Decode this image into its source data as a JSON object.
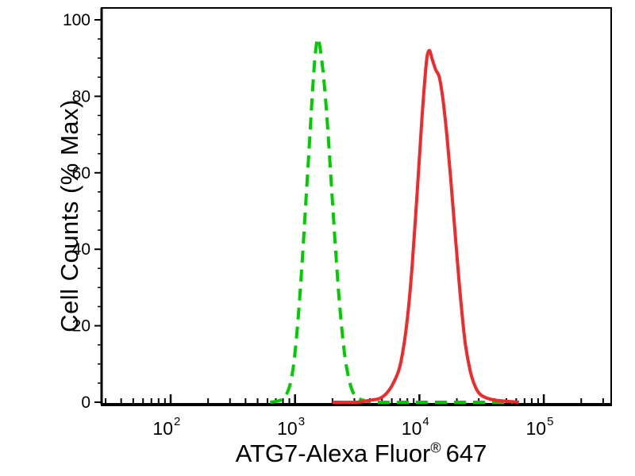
{
  "figure": {
    "background": "#ffffff",
    "axis_color": "#000000",
    "text_color": "#000000"
  },
  "chart_data": {
    "type": "line",
    "subtype": "flow-cytometry-histogram",
    "title": "",
    "xlabel": "ATG7-Alexa Fluor® 647",
    "xlabel_parts": {
      "main": "ATG7-Alexa Fluor",
      "sup": "®",
      "end": "647"
    },
    "ylabel": "Cell Counts (% Max)",
    "x_scale": "log10",
    "x_tick_exponents": [
      2,
      3,
      4,
      5
    ],
    "x_log_limits": [
      1.445,
      5.54
    ],
    "ylim": [
      0,
      100
    ],
    "y_ticks": [
      0,
      20,
      40,
      60,
      80,
      100
    ],
    "y_minor_step": 5,
    "grid": false,
    "legend": "none",
    "axis_color": "#000000",
    "series": [
      {
        "id": "green-dashed-curve",
        "name": "green dashed peak",
        "color": "#00cc00",
        "line_style": "dashed",
        "line_width": 4,
        "dash_pattern": "15 9",
        "peak": {
          "x_approx": 1500,
          "y": 95
        },
        "points_logx_y": [
          [
            2.8,
            0
          ],
          [
            2.88,
            0.5
          ],
          [
            2.93,
            2
          ],
          [
            2.97,
            6
          ],
          [
            3.0,
            13
          ],
          [
            3.03,
            24
          ],
          [
            3.06,
            38
          ],
          [
            3.09,
            54
          ],
          [
            3.12,
            70
          ],
          [
            3.14,
            81
          ],
          [
            3.16,
            90
          ],
          [
            3.18,
            95
          ],
          [
            3.2,
            93
          ],
          [
            3.23,
            85
          ],
          [
            3.26,
            73
          ],
          [
            3.29,
            58
          ],
          [
            3.32,
            43
          ],
          [
            3.35,
            29
          ],
          [
            3.38,
            18
          ],
          [
            3.41,
            10
          ],
          [
            3.45,
            4
          ],
          [
            3.49,
            1.5
          ],
          [
            3.55,
            0.5
          ],
          [
            3.65,
            0
          ],
          [
            3.95,
            0
          ],
          [
            4.3,
            0
          ],
          [
            4.6,
            0
          ],
          [
            4.75,
            0
          ]
        ]
      },
      {
        "id": "red-solid-curve",
        "name": "red solid peak",
        "color": "#ee2a2a",
        "line_style": "solid",
        "line_width": 4,
        "dash_pattern": "",
        "peak": {
          "x_approx": 12000,
          "y": 92
        },
        "points_logx_y": [
          [
            3.3,
            0
          ],
          [
            3.5,
            0
          ],
          [
            3.6,
            0.5
          ],
          [
            3.68,
            1
          ],
          [
            3.74,
            2.5
          ],
          [
            3.79,
            5
          ],
          [
            3.84,
            9
          ],
          [
            3.88,
            16
          ],
          [
            3.91,
            24
          ],
          [
            3.94,
            35
          ],
          [
            3.97,
            49
          ],
          [
            4.0,
            64
          ],
          [
            4.02,
            74
          ],
          [
            4.04,
            83
          ],
          [
            4.06,
            90
          ],
          [
            4.08,
            92
          ],
          [
            4.1,
            90
          ],
          [
            4.13,
            87
          ],
          [
            4.16,
            85
          ],
          [
            4.19,
            79
          ],
          [
            4.22,
            70
          ],
          [
            4.25,
            59
          ],
          [
            4.28,
            47
          ],
          [
            4.31,
            35
          ],
          [
            4.34,
            24
          ],
          [
            4.37,
            15
          ],
          [
            4.41,
            8
          ],
          [
            4.45,
            4
          ],
          [
            4.49,
            2
          ],
          [
            4.55,
            1
          ],
          [
            4.62,
            0.5
          ],
          [
            4.8,
            0
          ]
        ]
      }
    ]
  }
}
